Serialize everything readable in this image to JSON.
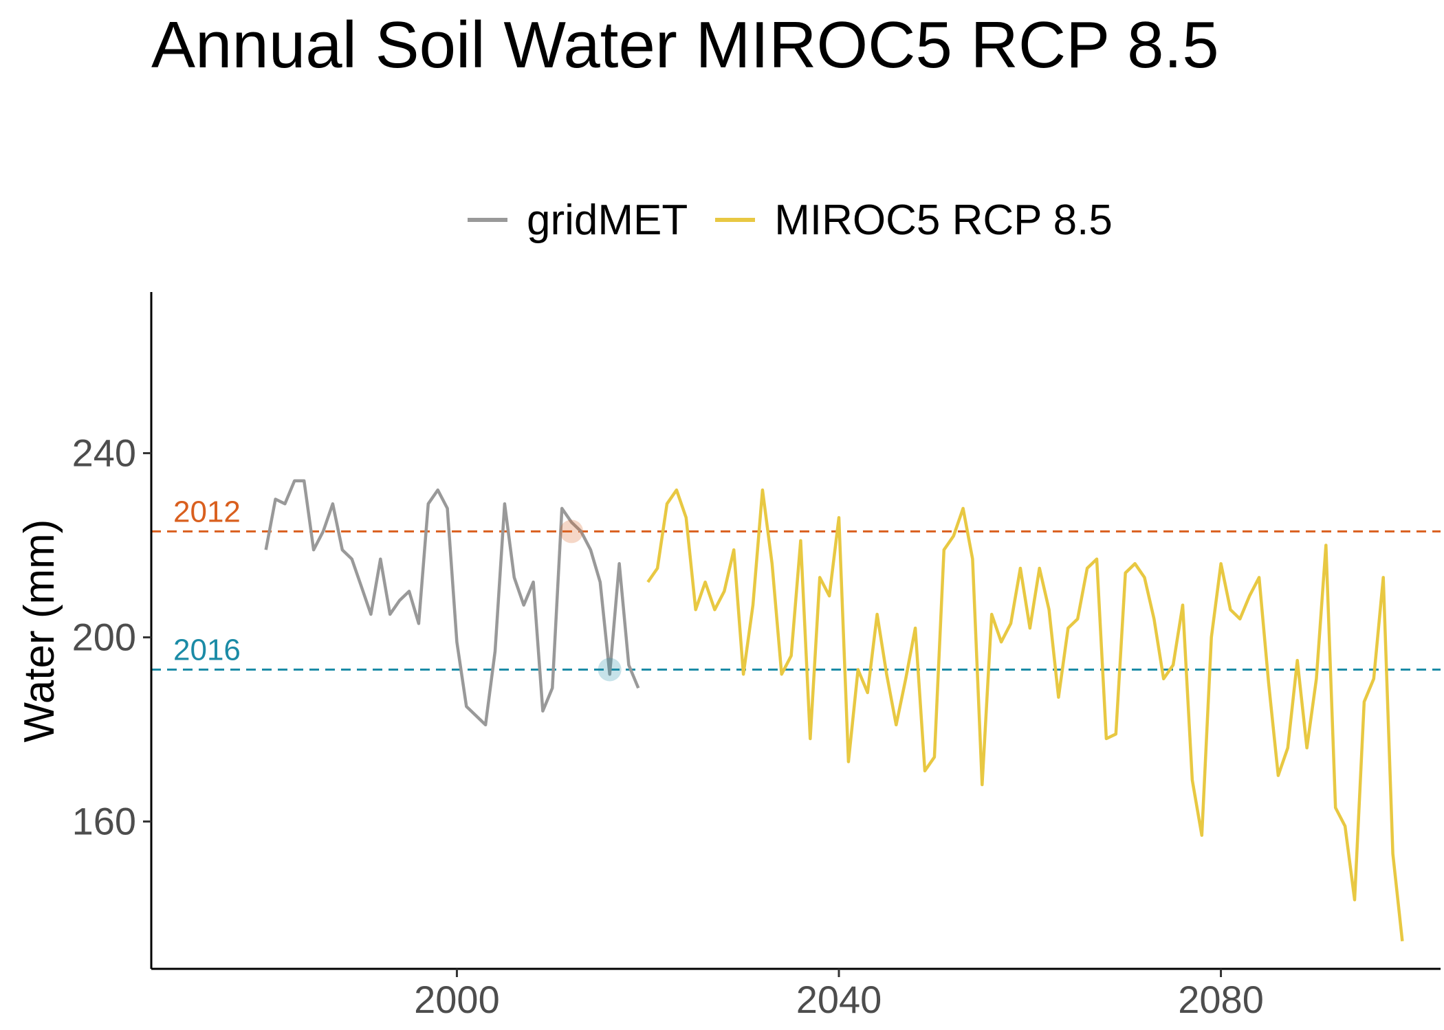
{
  "chart_data": {
    "type": "line",
    "title": "Annual Soil Water MIROC5 RCP 8.5",
    "xlabel": "",
    "ylabel": "Water (mm)",
    "xlim": [
      1968,
      2103
    ],
    "ylim": [
      128,
      275
    ],
    "x_ticks": [
      2000,
      2040,
      2080
    ],
    "y_ticks": [
      160,
      200,
      240
    ],
    "grid": false,
    "legend_position": "top",
    "colors": {
      "gridMET": "#999999",
      "MIROC5 RCP 8.5": "#E8C842",
      "2012": "#D95F1E",
      "2016": "#1B8BA6"
    },
    "series": [
      {
        "name": "gridMET",
        "x": [
          1980,
          1981,
          1982,
          1983,
          1984,
          1985,
          1986,
          1987,
          1988,
          1989,
          1990,
          1991,
          1992,
          1993,
          1994,
          1995,
          1996,
          1997,
          1998,
          1999,
          2000,
          2001,
          2002,
          2003,
          2004,
          2005,
          2006,
          2007,
          2008,
          2009,
          2010,
          2011,
          2012,
          2013,
          2014,
          2015,
          2016,
          2017,
          2018,
          2019
        ],
        "values": [
          219,
          230,
          229,
          234,
          234,
          219,
          223,
          229,
          219,
          217,
          211,
          205,
          217,
          205,
          208,
          210,
          203,
          229,
          232,
          228,
          199,
          185,
          183,
          181,
          197,
          229,
          213,
          207,
          212,
          184,
          189,
          228,
          225,
          223,
          219,
          212,
          192,
          216,
          194,
          189
        ]
      },
      {
        "name": "MIROC5 RCP 8.5",
        "x": [
          2020,
          2021,
          2022,
          2023,
          2024,
          2025,
          2026,
          2027,
          2028,
          2029,
          2030,
          2031,
          2032,
          2033,
          2034,
          2035,
          2036,
          2037,
          2038,
          2039,
          2040,
          2041,
          2042,
          2043,
          2044,
          2045,
          2046,
          2047,
          2048,
          2049,
          2050,
          2051,
          2052,
          2053,
          2054,
          2055,
          2056,
          2057,
          2058,
          2059,
          2060,
          2061,
          2062,
          2063,
          2064,
          2065,
          2066,
          2067,
          2068,
          2069,
          2070,
          2071,
          2072,
          2073,
          2074,
          2075,
          2076,
          2077,
          2078,
          2079,
          2080,
          2081,
          2082,
          2083,
          2084,
          2085,
          2086,
          2087,
          2088,
          2089,
          2090,
          2091,
          2092,
          2093,
          2094,
          2095,
          2096,
          2097,
          2098,
          2099
        ],
        "values": [
          212,
          215,
          229,
          232,
          226,
          206,
          212,
          206,
          210,
          219,
          192,
          207,
          232,
          216,
          192,
          196,
          221,
          178,
          213,
          209,
          226,
          173,
          193,
          188,
          205,
          192,
          181,
          191,
          202,
          171,
          174,
          219,
          222,
          228,
          217,
          168,
          205,
          199,
          203,
          215,
          202,
          215,
          206,
          187,
          202,
          204,
          215,
          217,
          178,
          179,
          214,
          216,
          213,
          204,
          191,
          194,
          207,
          169,
          157,
          200,
          216,
          206,
          204,
          209,
          213,
          190,
          170,
          176,
          195,
          176,
          191,
          220,
          163,
          159,
          143,
          186,
          191,
          213,
          153,
          134
        ]
      }
    ],
    "reference_lines": [
      {
        "label": "2012",
        "y": 223,
        "x_marker": 2012
      },
      {
        "label": "2016",
        "y": 193,
        "x_marker": 2016
      }
    ]
  }
}
